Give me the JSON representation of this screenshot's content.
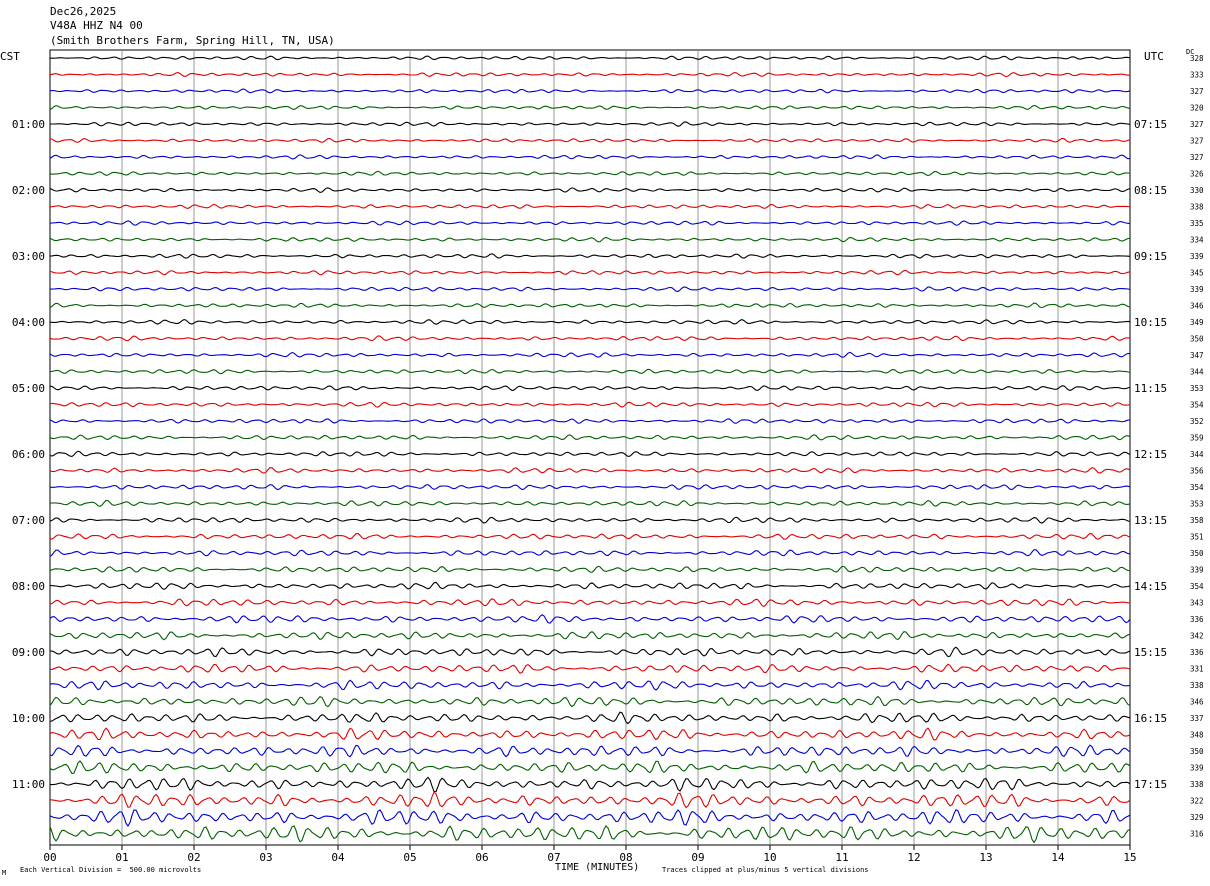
{
  "header": {
    "date": "Dec26,2025",
    "station": "V48A HHZ N4 00",
    "location": "(Smith Brothers Farm, Spring Hill, TN, USA)"
  },
  "axes": {
    "left_timezone": "CST",
    "right_timezone": "UTC",
    "dc_label": "DC",
    "xlabel": "TIME (MINUTES)",
    "corner_mark": "M"
  },
  "footer": {
    "division_note": "Each Vertical Division =  500.00 microvolts",
    "clip_note": "Traces clipped at plus/minus 5 vertical divisions"
  },
  "colors": {
    "trace_cycle": [
      "#000000",
      "#e00000",
      "#0000d0",
      "#006000"
    ],
    "grid": "#808080"
  },
  "chart_data": {
    "type": "line",
    "description_kind": "helicorder",
    "x_range": [
      0,
      15
    ],
    "x_ticks": [
      "00",
      "01",
      "02",
      "03",
      "04",
      "05",
      "06",
      "07",
      "08",
      "09",
      "10",
      "11",
      "12",
      "13",
      "14",
      "15"
    ],
    "rows": 48,
    "rows_per_hour": 4,
    "minutes_per_row": 15,
    "left_hour_labels": [
      "01:00",
      "02:00",
      "03:00",
      "04:00",
      "05:00",
      "06:00",
      "07:00",
      "08:00",
      "09:00",
      "10:00",
      "11:00"
    ],
    "right_hour_labels": [
      "07:15",
      "08:15",
      "09:15",
      "10:15",
      "11:15",
      "12:15",
      "13:15",
      "14:15",
      "15:15",
      "16:15",
      "17:15"
    ],
    "hour_label_row_start": 4,
    "dc_offsets": [
      328,
      333,
      327,
      320,
      327,
      327,
      327,
      326,
      330,
      338,
      335,
      334,
      339,
      345,
      339,
      346,
      349,
      350,
      347,
      344,
      353,
      354,
      352,
      359,
      344,
      356,
      354,
      353,
      358,
      351,
      350,
      339,
      354,
      343,
      336,
      342,
      336,
      331,
      338,
      346,
      337,
      348,
      350,
      339,
      338,
      322,
      329,
      316
    ],
    "amplitude_by_row": [
      1.8,
      1.8,
      1.8,
      1.8,
      1.8,
      1.8,
      1.8,
      1.8,
      1.9,
      1.9,
      1.9,
      1.9,
      2.0,
      2.0,
      2.0,
      2.0,
      2.1,
      2.1,
      2.1,
      2.1,
      2.2,
      2.2,
      2.2,
      2.3,
      2.3,
      2.4,
      2.4,
      2.5,
      2.6,
      2.7,
      2.8,
      2.9,
      3.2,
      3.4,
      3.6,
      3.8,
      4.0,
      4.2,
      4.4,
      4.6,
      4.9,
      5.2,
      5.5,
      5.8,
      6.2,
      6.8,
      7.2,
      7.6
    ]
  }
}
